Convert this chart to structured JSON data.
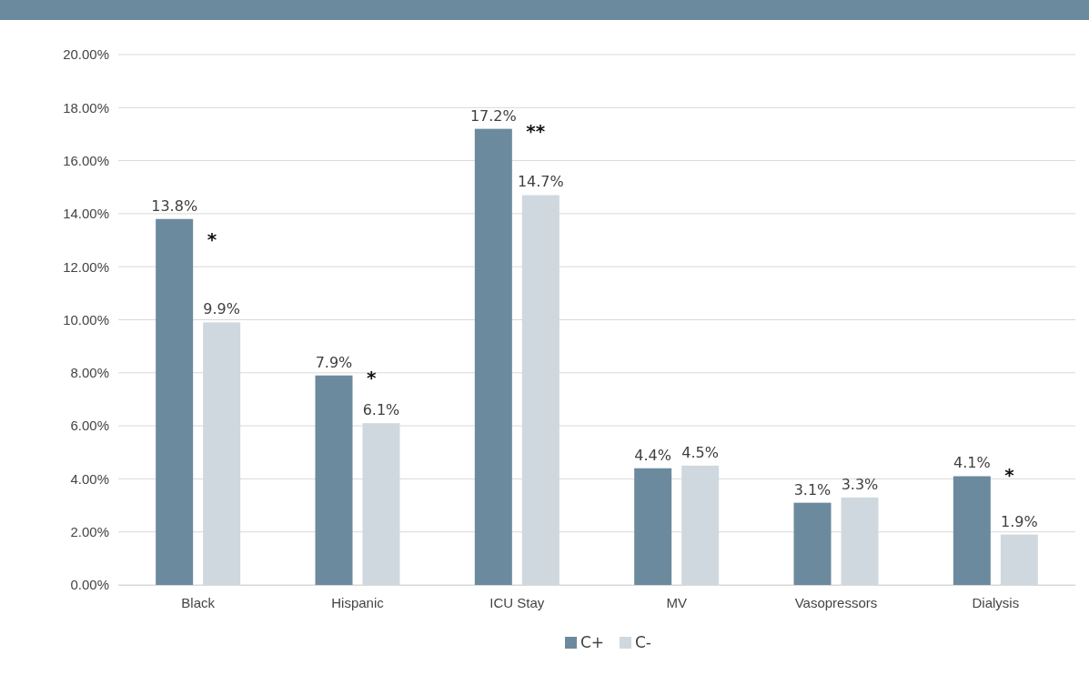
{
  "chart_data": {
    "type": "bar",
    "categories": [
      "Black",
      "Hispanic",
      "ICU Stay",
      "MV",
      "Vasopressors",
      "Dialysis"
    ],
    "series": [
      {
        "name": "C+",
        "color": "#6b8a9e",
        "values": [
          13.8,
          7.9,
          17.2,
          4.4,
          3.1,
          4.1
        ],
        "value_labels": [
          "13.8%",
          "7.9%",
          "17.2%",
          "4.4%",
          "3.1%",
          "4.1%"
        ]
      },
      {
        "name": "C-",
        "color": "#cfd8de",
        "values": [
          9.9,
          6.1,
          14.7,
          4.5,
          3.3,
          1.9
        ],
        "value_labels": [
          "9.9%",
          "6.1%",
          "14.7%",
          "4.5%",
          "3.3%",
          "1.9%"
        ]
      }
    ],
    "ylim": [
      0,
      20
    ],
    "yticks": [
      {
        "value": 0,
        "label": "0.00%"
      },
      {
        "value": 2,
        "label": "2.00%"
      },
      {
        "value": 4,
        "label": "4.00%"
      },
      {
        "value": 6,
        "label": "6.00%"
      },
      {
        "value": 8,
        "label": "8.00%"
      },
      {
        "value": 10,
        "label": "10.00%"
      },
      {
        "value": 12,
        "label": "12.00%"
      },
      {
        "value": 14,
        "label": "14.00%"
      },
      {
        "value": 16,
        "label": "16.00%"
      },
      {
        "value": 18,
        "label": "18.00%"
      },
      {
        "value": 20,
        "label": "20.00%"
      }
    ],
    "annotations": [
      "*",
      "*",
      "**",
      "*"
    ],
    "grid": "y",
    "legend": "bottom"
  }
}
